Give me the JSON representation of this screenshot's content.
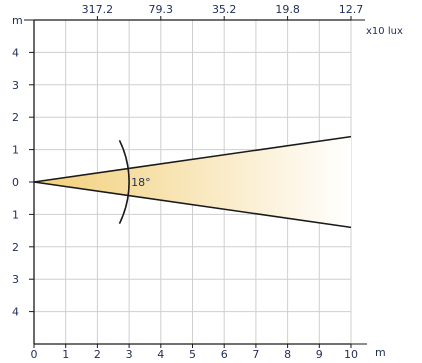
{
  "chart_data": {
    "type": "area",
    "x_unit": "m",
    "y_unit": "m",
    "x_ticks": [
      "0",
      "1",
      "2",
      "3",
      "4",
      "5",
      "6",
      "7",
      "8",
      "9",
      "10"
    ],
    "y_ticks": [
      "4",
      "3",
      "2",
      "1",
      "0",
      "1",
      "2",
      "3",
      "4"
    ],
    "top_axis": {
      "unit": "x10 lux",
      "labels": [
        {
          "x": 2,
          "label": "317.2"
        },
        {
          "x": 4,
          "label": "79.3"
        },
        {
          "x": 6,
          "label": "35.2"
        },
        {
          "x": 8,
          "label": "19.8"
        },
        {
          "x": 10,
          "label": "12.7"
        }
      ]
    },
    "xlim": [
      0,
      10
    ],
    "ylim": [
      -5,
      5
    ],
    "beam": {
      "angle_label": "18°",
      "angle_deg": 18,
      "arc_at_x": 3,
      "origin": [
        0,
        0
      ],
      "edges": [
        {
          "x": 10,
          "y": 1.4
        },
        {
          "x": 10,
          "y": -1.4
        }
      ]
    },
    "grid": true,
    "colors": {
      "beam_fill_start": "#f2cf78",
      "beam_fill_end": "#ffffff",
      "grid": "#cfcfcf",
      "line": "#1a1a1a",
      "text": "#1f2d5a"
    }
  }
}
